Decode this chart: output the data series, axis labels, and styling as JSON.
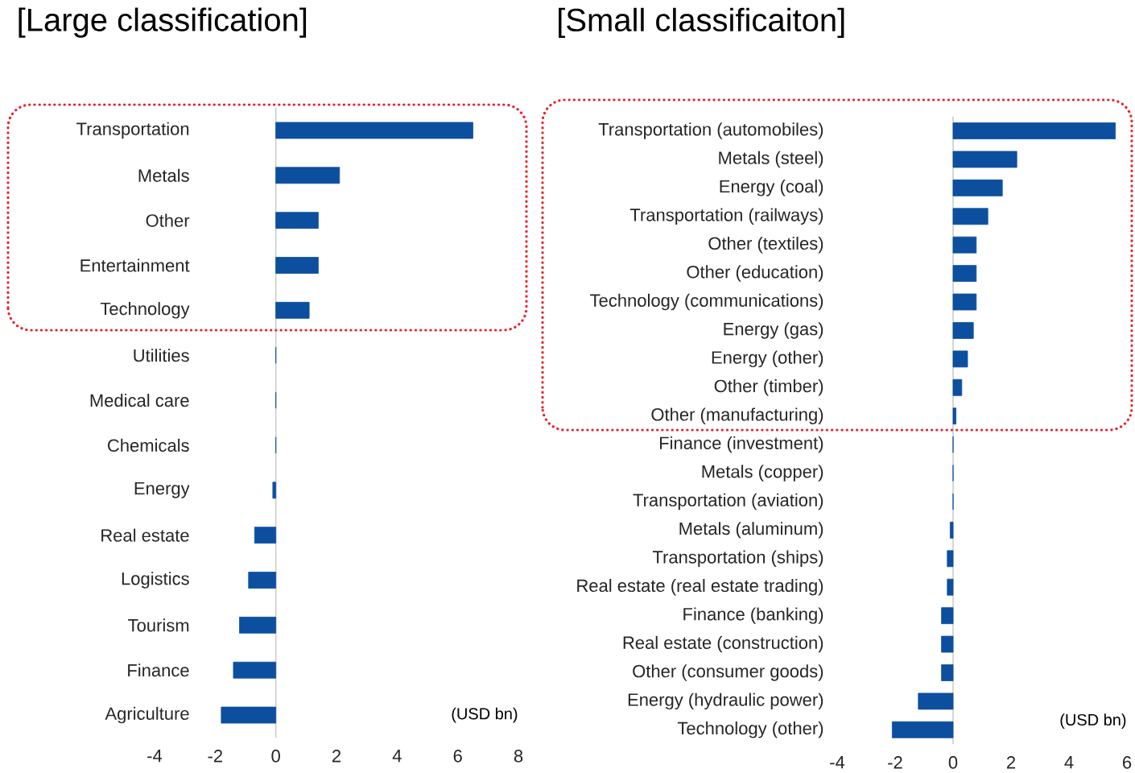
{
  "chart_data": [
    {
      "type": "bar",
      "orientation": "horizontal",
      "title": "[Large classification]",
      "categories": [
        "Transportation",
        "Metals",
        "Other",
        "Entertainment",
        "Technology",
        "Utilities",
        "Medical care",
        "Chemicals",
        "Energy",
        "Real estate",
        "Logistics",
        "Tourism",
        "Finance",
        "Agriculture"
      ],
      "values": [
        6.5,
        2.1,
        1.4,
        1.4,
        1.1,
        0,
        0,
        0,
        -0.1,
        -0.7,
        -0.9,
        -1.2,
        -1.4,
        -1.8
      ],
      "color": "#0d4f9f",
      "xlim": [
        -4,
        8
      ],
      "xticks": [
        -4,
        -2,
        0,
        2,
        4,
        6,
        8
      ],
      "annotations": [
        "(USD bn)"
      ]
    },
    {
      "type": "bar",
      "orientation": "horizontal",
      "title": "[Small classificaiton]",
      "categories": [
        "Transportation (automobiles)",
        "Metals (steel)",
        "Energy (coal)",
        "Transportation (railways)",
        "Other (textiles)",
        "Other (education)",
        "Technology (communications)",
        "Energy (gas)",
        "Energy (other)",
        "Other (timber)",
        "Other (manufacturing)",
        "Finance (investment)",
        "Metals (copper)",
        "Transportation (aviation)",
        "Metals (aluminum)",
        "Transportation (ships)",
        "Real estate (real estate trading)",
        "Finance (banking)",
        "Real estate (construction)",
        "Other (consumer goods)",
        "Energy (hydraulic power)",
        "Technology (other)"
      ],
      "values": [
        5.6,
        2.2,
        1.7,
        1.2,
        0.8,
        0.8,
        0.8,
        0.7,
        0.5,
        0.3,
        0.1,
        0,
        0,
        0,
        -0.1,
        -0.2,
        -0.2,
        -0.4,
        -0.4,
        -0.4,
        -1.2,
        -2.1
      ],
      "color": "#0d4f9f",
      "xlim": [
        -4,
        6
      ],
      "xticks": [
        -4,
        -2,
        0,
        2,
        4,
        6
      ],
      "annotations": [
        "(USD bn)"
      ]
    }
  ]
}
